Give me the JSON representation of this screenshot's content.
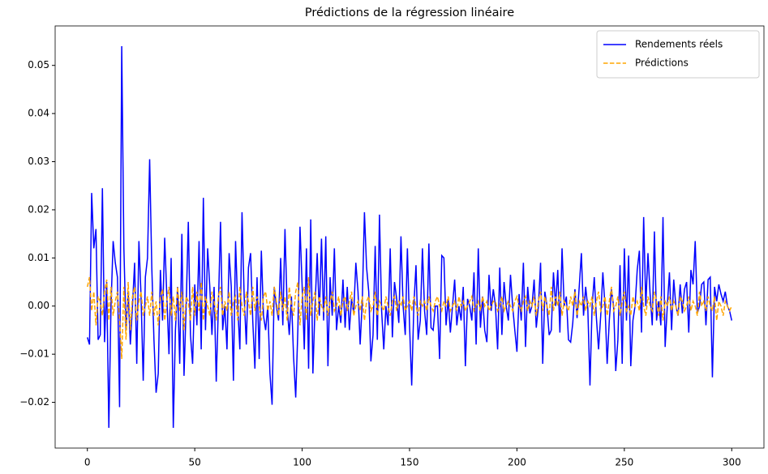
{
  "chart_data": {
    "type": "line",
    "title": "Prédictions de la régression linéaire",
    "x": [
      0,
      1,
      2,
      3,
      4,
      5,
      6,
      7,
      8,
      9,
      10,
      11,
      12,
      13,
      14,
      15,
      16,
      17,
      18,
      19,
      20,
      21,
      22,
      23,
      24,
      25,
      26,
      27,
      28,
      29,
      30,
      31,
      32,
      33,
      34,
      35,
      36,
      37,
      38,
      39,
      40,
      41,
      42,
      43,
      44,
      45,
      46,
      47,
      48,
      49,
      50,
      51,
      52,
      53,
      54,
      55,
      56,
      57,
      58,
      59,
      60,
      61,
      62,
      63,
      64,
      65,
      66,
      67,
      68,
      69,
      70,
      71,
      72,
      73,
      74,
      75,
      76,
      77,
      78,
      79,
      80,
      81,
      82,
      83,
      84,
      85,
      86,
      87,
      88,
      89,
      90,
      91,
      92,
      93,
      94,
      95,
      96,
      97,
      98,
      99,
      100,
      101,
      102,
      103,
      104,
      105,
      106,
      107,
      108,
      109,
      110,
      111,
      112,
      113,
      114,
      115,
      116,
      117,
      118,
      119,
      120,
      121,
      122,
      123,
      124,
      125,
      126,
      127,
      128,
      129,
      130,
      131,
      132,
      133,
      134,
      135,
      136,
      137,
      138,
      139,
      140,
      141,
      142,
      143,
      144,
      145,
      146,
      147,
      148,
      149,
      150,
      151,
      152,
      153,
      154,
      155,
      156,
      157,
      158,
      159,
      160,
      161,
      162,
      163,
      164,
      165,
      166,
      167,
      168,
      169,
      170,
      171,
      172,
      173,
      174,
      175,
      176,
      177,
      178,
      179,
      180,
      181,
      182,
      183,
      184,
      185,
      186,
      187,
      188,
      189,
      190,
      191,
      192,
      193,
      194,
      195,
      196,
      197,
      198,
      199,
      200,
      201,
      202,
      203,
      204,
      205,
      206,
      207,
      208,
      209,
      210,
      211,
      212,
      213,
      214,
      215,
      216,
      217,
      218,
      219,
      220,
      221,
      222,
      223,
      224,
      225,
      226,
      227,
      228,
      229,
      230,
      231,
      232,
      233,
      234,
      235,
      236,
      237,
      238,
      239,
      240,
      241,
      242,
      243,
      244,
      245,
      246,
      247,
      248,
      249,
      250,
      251,
      252,
      253,
      254,
      255,
      256,
      257,
      258,
      259,
      260,
      261,
      262,
      263,
      264,
      265,
      266,
      267,
      268,
      269,
      270,
      271,
      272,
      273,
      274,
      275,
      276,
      277,
      278,
      279,
      280,
      281,
      282,
      283,
      284,
      285,
      286,
      287,
      288,
      289,
      290,
      291,
      292,
      293,
      294,
      295,
      296,
      297,
      298,
      299,
      300
    ],
    "series": [
      {
        "name": "Rendements réels",
        "color": "#0000ff",
        "linestyle": "solid",
        "values": [
          -0.0065,
          -0.008,
          0.0235,
          0.012,
          0.016,
          -0.007,
          -0.006,
          0.0245,
          -0.0075,
          0.005,
          -0.0253,
          0.0,
          0.0135,
          0.009,
          0.006,
          -0.021,
          0.054,
          0.012,
          -0.005,
          0.003,
          -0.008,
          0.0,
          0.009,
          -0.012,
          0.0135,
          0.002,
          -0.0155,
          0.006,
          0.01,
          0.0305,
          0.008,
          -0.007,
          -0.018,
          -0.014,
          0.0075,
          -0.003,
          0.0142,
          0.002,
          -0.01,
          0.01,
          -0.0253,
          -0.005,
          0.004,
          -0.012,
          0.015,
          -0.0145,
          0.0,
          0.0175,
          -0.006,
          -0.012,
          0.0045,
          -0.004,
          0.0135,
          -0.009,
          0.0225,
          -0.005,
          0.012,
          0.004,
          -0.006,
          0.004,
          -0.0157,
          0.0,
          0.0175,
          -0.005,
          0.0,
          -0.009,
          0.011,
          0.004,
          -0.0155,
          0.0135,
          0.0,
          -0.009,
          0.0195,
          0.002,
          -0.008,
          0.008,
          0.011,
          -0.003,
          -0.013,
          0.006,
          -0.011,
          0.0115,
          -0.002,
          -0.005,
          0.0,
          -0.014,
          -0.0205,
          0.004,
          0.0,
          -0.003,
          0.01,
          -0.004,
          0.016,
          0.0,
          -0.006,
          0.002,
          -0.0105,
          -0.019,
          -0.005,
          0.0165,
          0.004,
          -0.009,
          0.012,
          -0.013,
          0.018,
          -0.014,
          0.0,
          0.011,
          -0.002,
          0.014,
          -0.003,
          0.0145,
          -0.0125,
          0.006,
          -0.002,
          0.012,
          -0.005,
          0.0,
          -0.0035,
          0.0055,
          -0.0045,
          0.004,
          -0.005,
          0.0015,
          -0.0015,
          0.009,
          0.003,
          -0.008,
          0.001,
          0.0195,
          0.008,
          0.003,
          -0.0115,
          -0.006,
          0.0125,
          -0.007,
          0.019,
          -0.001,
          -0.009,
          0.0,
          -0.004,
          0.012,
          -0.0065,
          0.005,
          0.0015,
          -0.0035,
          0.0145,
          0.0,
          -0.006,
          0.012,
          -0.004,
          -0.0165,
          0.0,
          0.0085,
          -0.007,
          -0.003,
          0.012,
          -0.001,
          -0.006,
          0.013,
          -0.0045,
          -0.005,
          0.0,
          0.0,
          -0.011,
          0.0105,
          0.01,
          -0.004,
          0.0015,
          -0.0055,
          0.0,
          0.0055,
          -0.004,
          0.0,
          -0.003,
          0.004,
          -0.0125,
          0.0015,
          0.0,
          -0.003,
          0.007,
          -0.008,
          0.012,
          -0.0045,
          0.002,
          -0.005,
          -0.0075,
          0.0065,
          -0.001,
          0.0035,
          0.0,
          -0.009,
          0.008,
          -0.006,
          0.005,
          0.0,
          -0.003,
          0.0065,
          0.0,
          -0.005,
          -0.0095,
          0.0025,
          -0.003,
          0.009,
          -0.0085,
          0.004,
          -0.0015,
          0.0,
          0.0055,
          -0.0045,
          0.0,
          0.009,
          -0.012,
          0.003,
          0.0,
          -0.006,
          -0.005,
          0.007,
          0.0,
          0.0075,
          -0.0055,
          0.012,
          0.0,
          0.002,
          -0.007,
          -0.0075,
          -0.0035,
          0.0035,
          -0.0025,
          0.004,
          0.011,
          -0.002,
          0.004,
          -0.0005,
          -0.0165,
          0.0,
          0.006,
          -0.0025,
          -0.009,
          -0.002,
          0.007,
          0.0,
          -0.012,
          -0.003,
          0.0035,
          0.0,
          -0.0135,
          -0.007,
          0.0085,
          -0.012,
          0.012,
          -0.003,
          0.0105,
          -0.0125,
          -0.003,
          0.0,
          0.0075,
          0.0115,
          -0.0055,
          0.0185,
          0.0,
          0.011,
          0.0025,
          -0.004,
          0.0155,
          -0.003,
          0.001,
          -0.004,
          0.0185,
          -0.0085,
          0.0,
          0.007,
          -0.005,
          0.0055,
          0.0,
          -0.002,
          0.0045,
          -0.0015,
          0.0035,
          0.005,
          -0.0055,
          0.0075,
          0.0045,
          0.0135,
          -0.0015,
          0.0,
          0.0045,
          0.005,
          -0.004,
          0.0055,
          0.006,
          -0.0148,
          0.004,
          0.001,
          0.0045,
          0.0025,
          0.001,
          0.003,
          0.0,
          -0.001,
          -0.003
        ]
      },
      {
        "name": "Prédictions",
        "color": "#ffa500",
        "linestyle": "dashed",
        "values": [
          0.004,
          0.006,
          -0.001,
          0.003,
          -0.004,
          0.002,
          0.001,
          -0.002,
          0.003,
          0.0055,
          -0.003,
          0.004,
          -0.002,
          0.001,
          0.003,
          -0.003,
          -0.011,
          0.004,
          -0.007,
          0.005,
          -0.005,
          0.002,
          0.004,
          -0.003,
          0.001,
          0.003,
          -0.002,
          0.0,
          0.002,
          -0.002,
          0.003,
          -0.002,
          0.001,
          -0.004,
          0.002,
          0.0035,
          -0.003,
          0.001,
          0.004,
          -0.002,
          0.002,
          -0.003,
          0.004,
          -0.001,
          0.003,
          -0.005,
          0.002,
          0.001,
          -0.003,
          0.004,
          -0.002,
          0.003,
          -0.001,
          0.005,
          -0.003,
          0.002,
          0.0,
          -0.002,
          0.003,
          0.001,
          -0.003,
          0.002,
          0.004,
          -0.002,
          0.001,
          -0.001,
          0.003,
          -0.002,
          0.001,
          0.002,
          -0.003,
          0.004,
          0.0,
          -0.002,
          0.003,
          0.001,
          -0.002,
          0.004,
          -0.001,
          0.002,
          0.0,
          -0.003,
          0.002,
          0.003,
          -0.001,
          0.001,
          -0.002,
          0.004,
          0.001,
          -0.002,
          0.003,
          -0.001,
          0.002,
          -0.003,
          0.004,
          0.0,
          -0.002,
          0.003,
          0.005,
          -0.004,
          0.002,
          0.004,
          -0.003,
          0.006,
          -0.002,
          0.001,
          0.003,
          -0.003,
          0.002,
          0.0,
          -0.001,
          0.002,
          -0.002,
          0.001,
          0.003,
          -0.001,
          0.0,
          0.002,
          -0.002,
          0.001,
          0.002,
          -0.001,
          0.001,
          0.003,
          -0.002,
          0.0,
          0.001,
          -0.001,
          0.002,
          -0.003,
          0.001,
          0.002,
          -0.001,
          0.0,
          0.003,
          -0.002,
          0.001,
          0.0,
          -0.001,
          0.002,
          0.0,
          -0.002,
          0.001,
          0.002,
          -0.001,
          0.001,
          0.0,
          0.002,
          -0.001,
          0.0,
          0.001,
          -0.001,
          0.002,
          0.0,
          -0.002,
          0.001,
          0.0,
          0.001,
          -0.001,
          0.002,
          0.0,
          -0.001,
          0.001,
          0.002,
          0.0,
          -0.001,
          0.001,
          0.0,
          0.002,
          -0.001,
          0.0,
          0.001,
          -0.001,
          0.002,
          0.0,
          0.001,
          -0.001,
          0.0,
          0.001,
          0.002,
          -0.001,
          0.0,
          0.001,
          -0.001,
          0.002,
          0.0,
          0.001,
          -0.001,
          0.0,
          0.001,
          0.001,
          -0.001,
          0.0,
          0.002,
          -0.001,
          0.0,
          0.001,
          0.0,
          -0.001,
          0.001,
          0.002,
          0.0,
          -0.001,
          0.001,
          0.002,
          -0.001,
          0.001,
          0.0,
          0.002,
          -0.002,
          0.001,
          0.003,
          -0.001,
          0.002,
          0.0,
          -0.002,
          0.004,
          -0.001,
          0.002,
          0.0,
          0.003,
          -0.002,
          0.001,
          0.0,
          -0.001,
          0.002,
          0.0,
          0.003,
          -0.002,
          0.001,
          0.0,
          0.002,
          -0.001,
          0.001,
          0.0,
          0.002,
          -0.002,
          0.001,
          0.003,
          -0.001,
          0.0,
          0.002,
          -0.002,
          0.001,
          0.004,
          -0.001,
          0.0,
          0.002,
          -0.002,
          0.001,
          0.003,
          -0.001,
          0.0,
          -0.002,
          0.002,
          0.0,
          0.001,
          -0.001,
          0.004,
          0.0,
          -0.002,
          0.002,
          0.0,
          -0.001,
          0.003,
          0.001,
          -0.002,
          0.002,
          -0.003,
          0.001,
          0.0,
          0.002,
          -0.001,
          0.001,
          0.0,
          -0.002,
          0.002,
          0.001,
          -0.001,
          0.0,
          0.002,
          -0.001,
          0.001,
          0.0,
          -0.002,
          0.003,
          0.0,
          0.001,
          -0.001,
          0.002,
          0.0,
          -0.001,
          0.002,
          -0.003,
          0.001,
          0.0,
          -0.002,
          0.001,
          0.0,
          -0.001,
          0.0
        ]
      }
    ],
    "xlim": [
      -15,
      315
    ],
    "xticks": [
      0,
      50,
      100,
      150,
      200,
      250,
      300
    ],
    "ylim": [
      -0.0295,
      0.0582
    ],
    "yticks": [
      {
        "value": -0.02,
        "label": "−0.02"
      },
      {
        "value": -0.01,
        "label": "−0.01"
      },
      {
        "value": 0,
        "label": "0.00"
      },
      0.01,
      0.02,
      0.03,
      0.04,
      0.05
    ],
    "legend": "upper right",
    "grid": false
  }
}
